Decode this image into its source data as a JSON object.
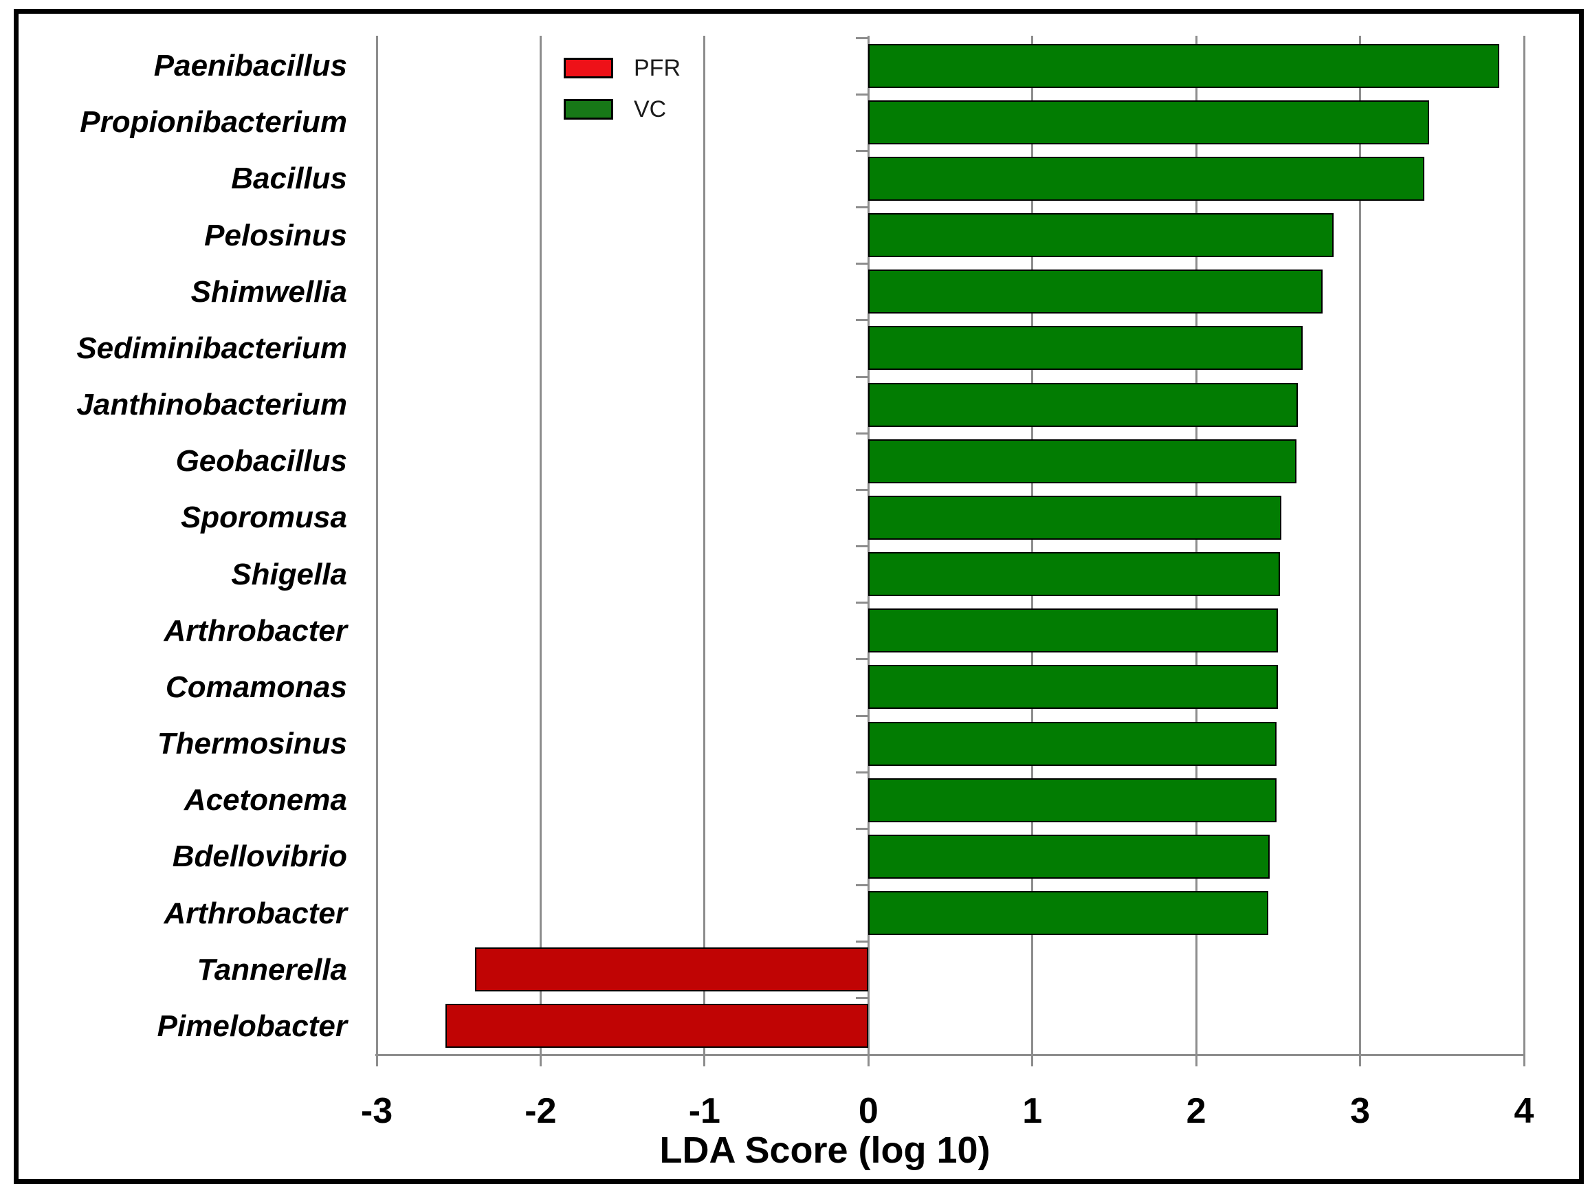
{
  "figure": {
    "background_color": "#ffffff",
    "border_color": "#000000",
    "gridline_color": "#8d8d8d"
  },
  "chart_data": {
    "type": "bar",
    "orientation": "horizontal",
    "title": "",
    "xlabel": "LDA Score (log 10)",
    "ylabel": "",
    "xlim": [
      -3,
      4
    ],
    "xticks": [
      -3,
      -2,
      -1,
      0,
      1,
      2,
      3,
      4
    ],
    "xtick_labels": [
      "-3",
      "-2",
      "-1",
      "0",
      "1",
      "2",
      "3",
      "4"
    ],
    "grid": true,
    "legend_position": "top-left-inside",
    "categories": [
      "Paenibacillus",
      "Propionibacterium",
      "Bacillus",
      "Pelosinus",
      "Shimwellia",
      "Sediminibacterium",
      "Janthinobacterium",
      "Geobacillus",
      "Sporomusa",
      "Shigella",
      "Arthrobacter",
      "Comamonas",
      "Thermosinus",
      "Acetonema",
      "Bdellovibrio",
      "Arthrobacter",
      "Tannerella",
      "Pimelobacter"
    ],
    "values": [
      3.85,
      3.42,
      3.39,
      2.84,
      2.77,
      2.65,
      2.62,
      2.61,
      2.52,
      2.51,
      2.5,
      2.5,
      2.49,
      2.49,
      2.45,
      2.44,
      -2.4,
      -2.58
    ],
    "groups": [
      "VC",
      "VC",
      "VC",
      "VC",
      "VC",
      "VC",
      "VC",
      "VC",
      "VC",
      "VC",
      "VC",
      "VC",
      "VC",
      "VC",
      "VC",
      "VC",
      "PFR",
      "PFR"
    ],
    "bar_colors": {
      "VC": "#027c02",
      "PFR": "#c00404"
    },
    "legend": [
      {
        "label": "PFR",
        "color": "#ee1118"
      },
      {
        "label": "VC",
        "color": "#177817"
      }
    ]
  }
}
